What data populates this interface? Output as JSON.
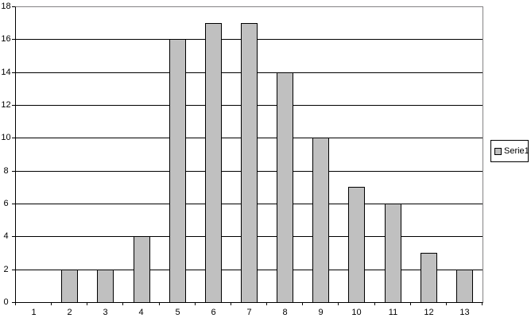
{
  "chart": {
    "legend": {
      "label": "Serie1",
      "position": "right"
    },
    "colors": {
      "bar_fill": "#c0c0c0",
      "bar_border": "#000000",
      "gridline": "#000000",
      "plot_border_top_right": "#848284",
      "axis": "#000000",
      "background": "#ffffff",
      "text": "#000000"
    }
  },
  "chart_data": {
    "type": "bar",
    "title": "",
    "xlabel": "",
    "ylabel": "",
    "categories": [
      "1",
      "2",
      "3",
      "4",
      "5",
      "6",
      "7",
      "8",
      "9",
      "10",
      "11",
      "12",
      "13"
    ],
    "series": [
      {
        "name": "Serie1",
        "values": [
          0,
          2,
          2,
          4,
          16,
          17,
          17,
          14,
          10,
          7,
          6,
          3,
          2
        ]
      }
    ],
    "ylim": [
      0,
      18
    ],
    "ytick_step": 2,
    "yticks": [
      0,
      2,
      4,
      6,
      8,
      10,
      12,
      14,
      16,
      18
    ],
    "grid": true,
    "legend_position": "right"
  }
}
